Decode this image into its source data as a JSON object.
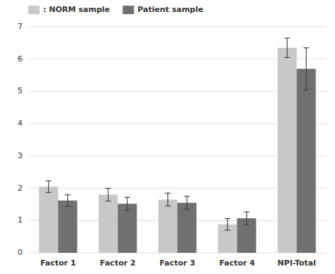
{
  "chart_data": {
    "type": "bar",
    "categories": [
      "Factor 1",
      "Factor 2",
      "Factor 3",
      "Factor 4",
      "NPI-Total"
    ],
    "series": [
      {
        "name": ": NORM sample",
        "color": "#c8c8c8",
        "values": [
          2.05,
          1.8,
          1.65,
          0.88,
          6.35
        ],
        "errors": [
          0.18,
          0.2,
          0.2,
          0.18,
          0.3
        ]
      },
      {
        "name": "Patient sample",
        "color": "#707070",
        "values": [
          1.62,
          1.52,
          1.55,
          1.07,
          5.7
        ],
        "errors": [
          0.18,
          0.2,
          0.2,
          0.2,
          0.65
        ]
      }
    ],
    "ylim": [
      0,
      7
    ],
    "yticks": [
      0,
      1,
      2,
      3,
      4,
      5,
      6,
      7
    ],
    "grid": true,
    "legend": "upper left"
  }
}
